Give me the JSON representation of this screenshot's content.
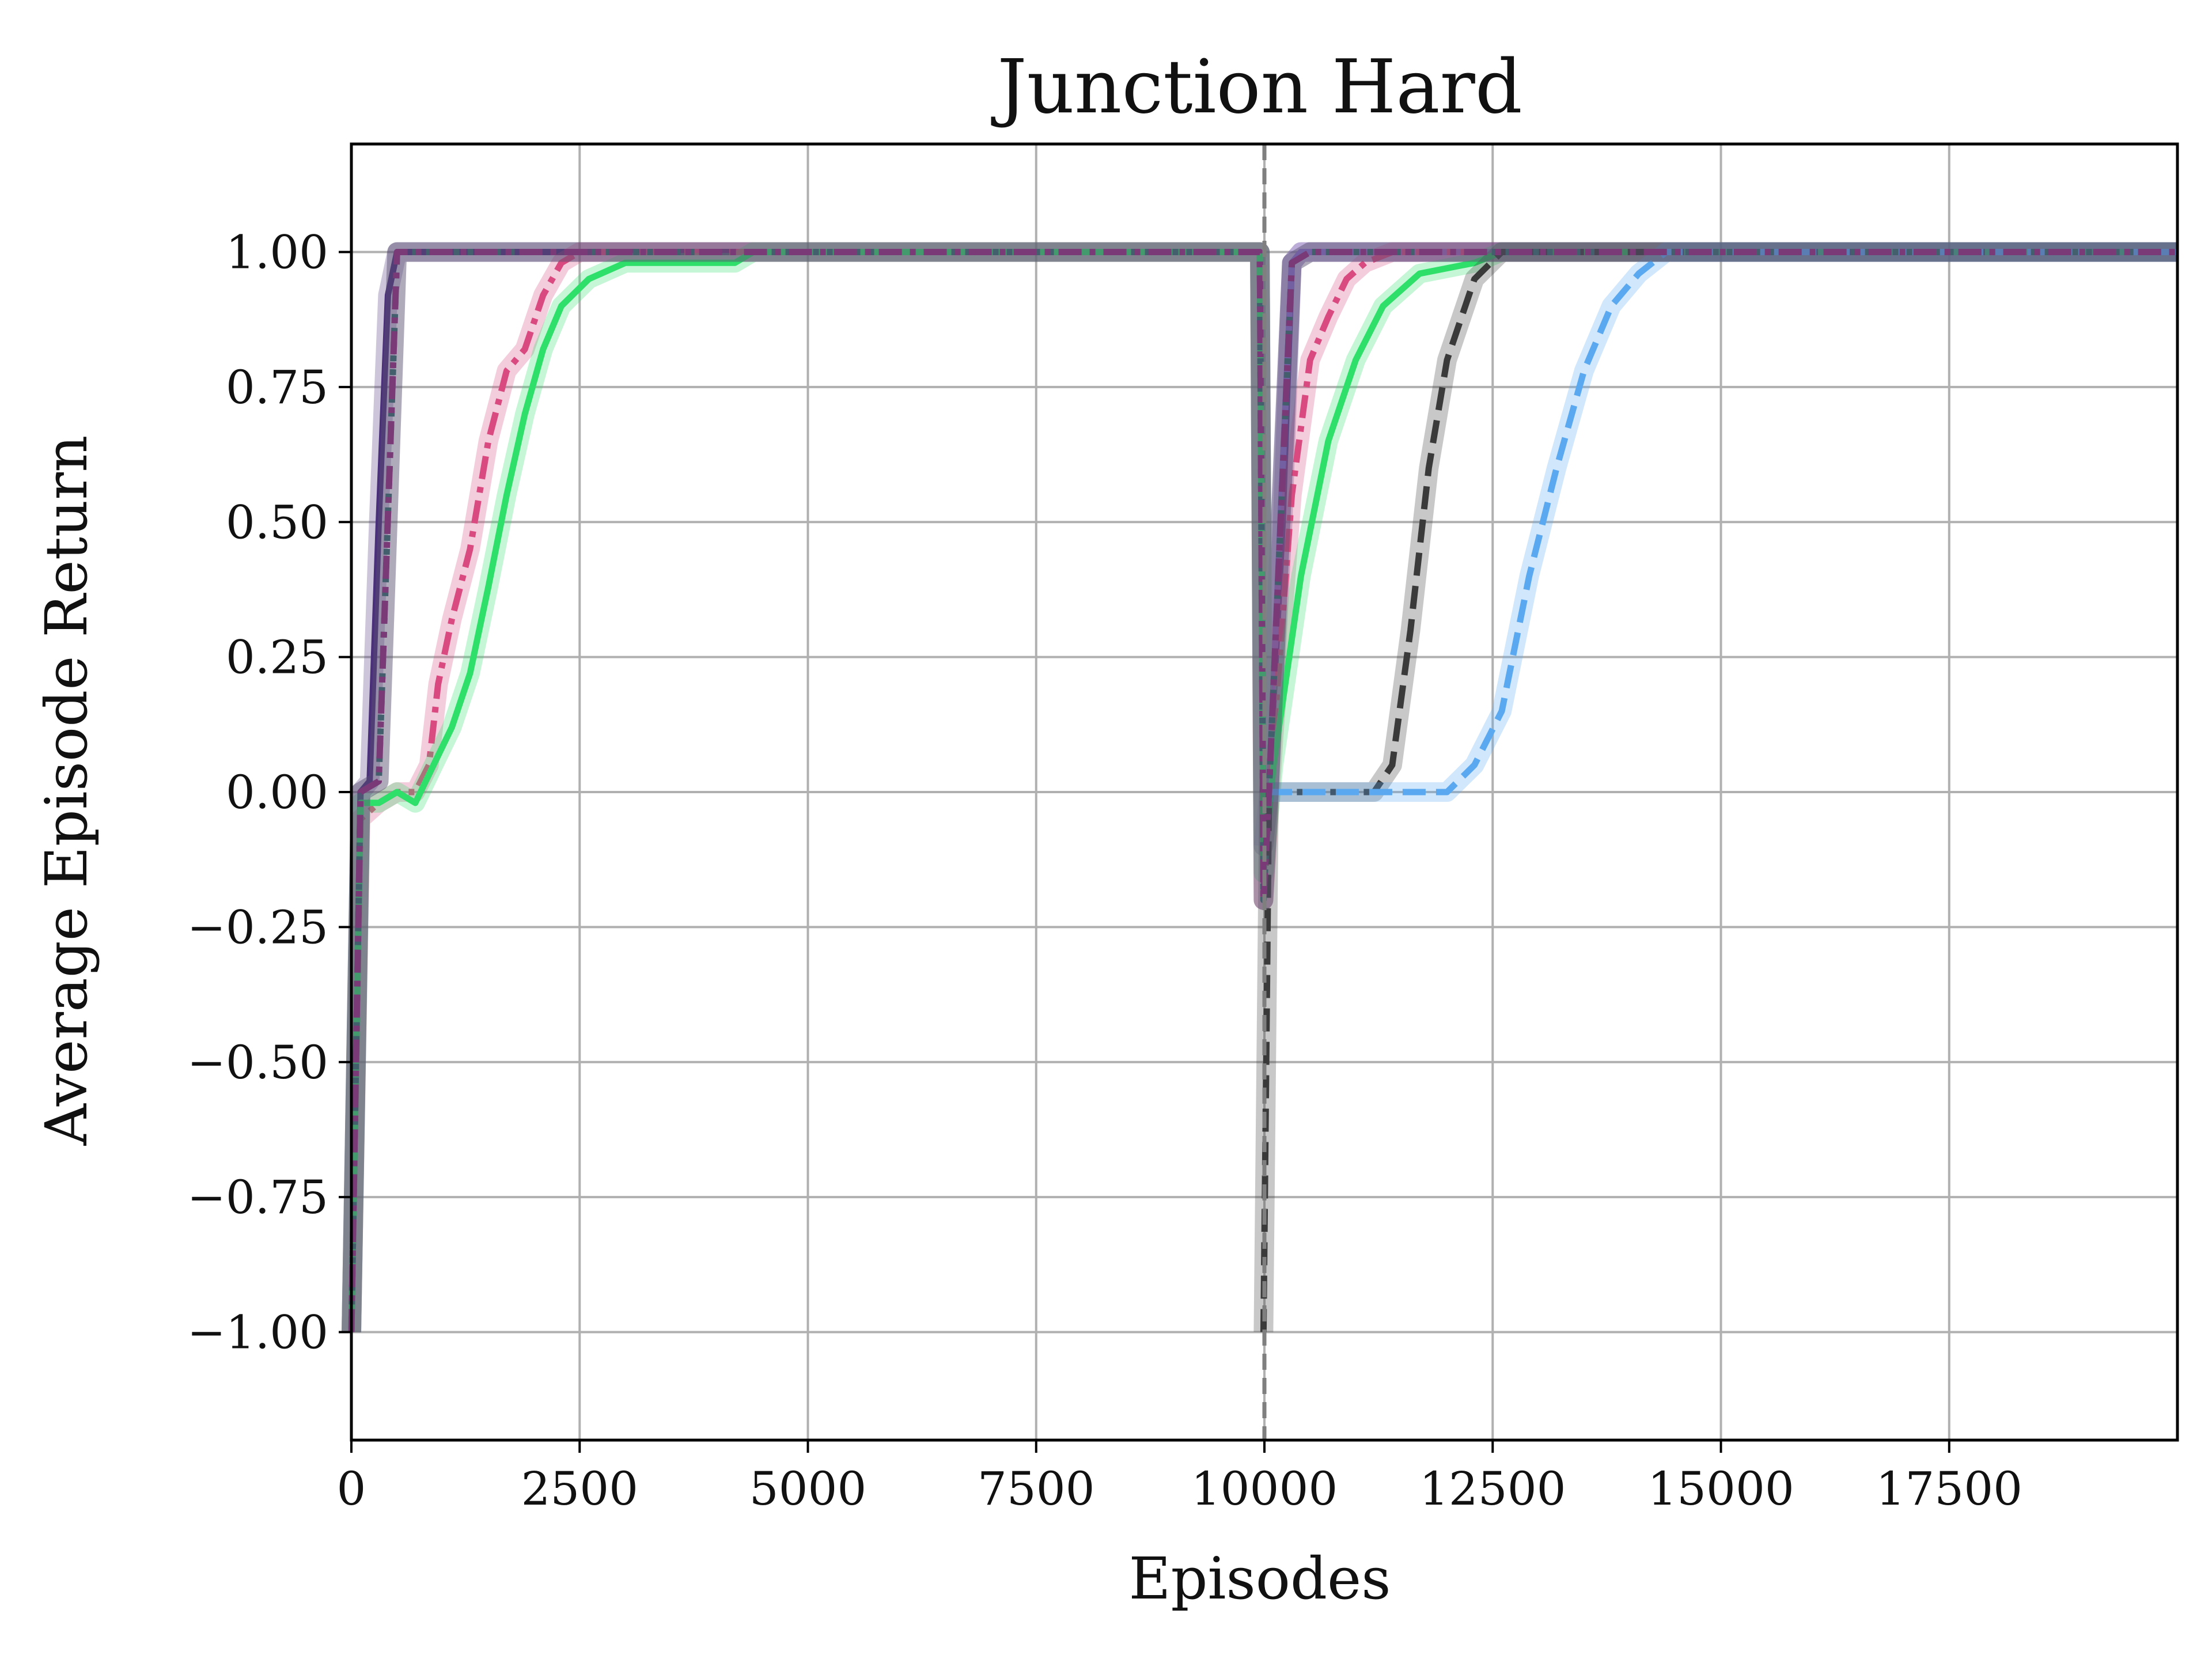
{
  "chart_data": {
    "type": "line",
    "title": "Junction Hard",
    "xlabel": "Episodes",
    "ylabel": "Average Episode Return",
    "xlim": [
      0,
      20000
    ],
    "ylim": [
      -1.2,
      1.2
    ],
    "xticks": [
      0,
      2500,
      5000,
      7500,
      10000,
      12500,
      15000,
      17500
    ],
    "xtick_labels": [
      "0",
      "2500",
      "5000",
      "7500",
      "10000",
      "12500",
      "15000",
      "17500"
    ],
    "yticks": [
      -1.0,
      -0.75,
      -0.5,
      -0.25,
      0.0,
      0.25,
      0.5,
      0.75,
      1.0
    ],
    "ytick_labels": [
      "−1.00",
      "−0.75",
      "−0.50",
      "−0.25",
      "0.00",
      "0.25",
      "0.50",
      "0.75",
      "1.00"
    ],
    "grid": true,
    "vline": {
      "x": 10000,
      "color": "#7f7f7f",
      "dash": "dashed"
    },
    "series": [
      {
        "color": "#4a2f7a",
        "dash": "solid",
        "points": [
          [
            0,
            -1.0
          ],
          [
            100,
            0.0
          ],
          [
            200,
            0.02
          ],
          [
            300,
            0.5
          ],
          [
            400,
            0.92
          ],
          [
            500,
            1.0
          ],
          [
            9950,
            1.0
          ],
          [
            9990,
            -0.1
          ],
          [
            10050,
            0.0
          ],
          [
            10200,
            0.5
          ],
          [
            10300,
            0.98
          ],
          [
            10400,
            1.0
          ],
          [
            20000,
            1.0
          ]
        ]
      },
      {
        "color": "#8b6fd0",
        "dash": "solid",
        "points": [
          [
            9990,
            -0.1
          ],
          [
            10050,
            0.0
          ],
          [
            10200,
            0.6
          ],
          [
            10300,
            0.98
          ],
          [
            10400,
            1.0
          ],
          [
            20000,
            1.0
          ]
        ]
      },
      {
        "color": "#d94a80",
        "dash": "dashdot",
        "points": [
          [
            0,
            -1.0
          ],
          [
            100,
            -0.05
          ],
          [
            300,
            -0.02
          ],
          [
            500,
            0.0
          ],
          [
            700,
            0.0
          ],
          [
            850,
            0.05
          ],
          [
            950,
            0.2
          ],
          [
            1100,
            0.32
          ],
          [
            1300,
            0.45
          ],
          [
            1500,
            0.65
          ],
          [
            1700,
            0.78
          ],
          [
            1900,
            0.82
          ],
          [
            2100,
            0.92
          ],
          [
            2300,
            0.98
          ],
          [
            2500,
            1.0
          ],
          [
            9950,
            1.0
          ],
          [
            9990,
            -0.2
          ],
          [
            10100,
            0.1
          ],
          [
            10300,
            0.55
          ],
          [
            10500,
            0.8
          ],
          [
            10700,
            0.88
          ],
          [
            10900,
            0.95
          ],
          [
            11100,
            0.98
          ],
          [
            11400,
            1.0
          ],
          [
            20000,
            1.0
          ]
        ]
      },
      {
        "color": "#2ee06a",
        "dash": "solid",
        "points": [
          [
            0,
            -1.0
          ],
          [
            100,
            -0.02
          ],
          [
            300,
            -0.02
          ],
          [
            500,
            0.0
          ],
          [
            700,
            -0.02
          ],
          [
            900,
            0.05
          ],
          [
            1100,
            0.12
          ],
          [
            1300,
            0.22
          ],
          [
            1500,
            0.38
          ],
          [
            1700,
            0.55
          ],
          [
            1900,
            0.7
          ],
          [
            2100,
            0.82
          ],
          [
            2300,
            0.9
          ],
          [
            2600,
            0.95
          ],
          [
            3000,
            0.98
          ],
          [
            4200,
            0.98
          ],
          [
            4400,
            1.0
          ],
          [
            9950,
            1.0
          ],
          [
            9990,
            -0.15
          ],
          [
            10100,
            0.05
          ],
          [
            10400,
            0.4
          ],
          [
            10700,
            0.65
          ],
          [
            11000,
            0.8
          ],
          [
            11300,
            0.9
          ],
          [
            11700,
            0.96
          ],
          [
            12300,
            0.98
          ],
          [
            12600,
            1.0
          ],
          [
            20000,
            1.0
          ]
        ]
      },
      {
        "color": "#3a3a3a",
        "dash": "dashed",
        "points": [
          [
            9990,
            -1.0
          ],
          [
            10050,
            0.0
          ],
          [
            11200,
            0.0
          ],
          [
            11400,
            0.05
          ],
          [
            11600,
            0.3
          ],
          [
            11800,
            0.6
          ],
          [
            12000,
            0.8
          ],
          [
            12300,
            0.95
          ],
          [
            12600,
            1.0
          ],
          [
            20000,
            1.0
          ]
        ]
      },
      {
        "color": "#5aa8f0",
        "dash": "dashed",
        "points": [
          [
            10050,
            0.0
          ],
          [
            12000,
            0.0
          ],
          [
            12300,
            0.05
          ],
          [
            12600,
            0.15
          ],
          [
            12900,
            0.4
          ],
          [
            13200,
            0.6
          ],
          [
            13500,
            0.78
          ],
          [
            13800,
            0.9
          ],
          [
            14100,
            0.96
          ],
          [
            14400,
            1.0
          ],
          [
            20000,
            1.0
          ]
        ]
      },
      {
        "color": "#2e6e6a",
        "dash": "dotted",
        "points": [
          [
            0,
            -1.0
          ],
          [
            100,
            0.0
          ],
          [
            300,
            0.02
          ],
          [
            500,
            1.0
          ],
          [
            9950,
            1.0
          ],
          [
            9990,
            -0.2
          ],
          [
            10050,
            0.0
          ],
          [
            10300,
            0.98
          ],
          [
            10500,
            1.0
          ],
          [
            20000,
            1.0
          ]
        ]
      },
      {
        "color": "#7a3a78",
        "dash": "dashdot",
        "points": [
          [
            0,
            -1.0
          ],
          [
            100,
            0.0
          ],
          [
            300,
            0.02
          ],
          [
            500,
            1.0
          ],
          [
            9950,
            1.0
          ],
          [
            9990,
            -0.2
          ],
          [
            10050,
            0.0
          ],
          [
            10300,
            0.98
          ],
          [
            10500,
            1.0
          ],
          [
            20000,
            1.0
          ]
        ]
      }
    ]
  }
}
